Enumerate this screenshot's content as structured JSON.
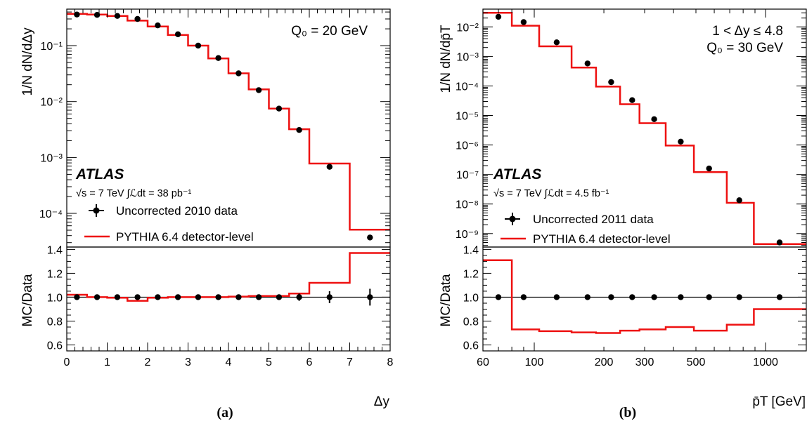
{
  "colors": {
    "mc": "#ee1111",
    "data": "#000000",
    "ref_line": "#000000"
  },
  "chart_data": [
    {
      "type": "line",
      "panel_label": "(a)",
      "main": {
        "ylabel": "1/N dN/dΔy",
        "yscale": "log",
        "ylim": [
          2.5e-05,
          0.45
        ],
        "yticks": [
          "10⁻¹",
          "10⁻²",
          "10⁻³",
          "10⁻⁴"
        ],
        "ytick_values": [
          0.1,
          0.01,
          0.001,
          0.0001
        ]
      },
      "ratio": {
        "ylabel": "MC/Data",
        "ylim": [
          0.55,
          1.42
        ],
        "yticks": [
          "1.4",
          "1.2",
          "1.0",
          "0.8",
          "0.6"
        ],
        "ytick_values": [
          1.4,
          1.2,
          1.0,
          0.8,
          0.6
        ],
        "reference": 1.0
      },
      "xlabel": "Δy",
      "xscale": "linear",
      "xlim": [
        0,
        8
      ],
      "xticks": [
        "0",
        "1",
        "2",
        "3",
        "4",
        "5",
        "6",
        "7",
        "8"
      ],
      "xtick_values": [
        0,
        1,
        2,
        3,
        4,
        5,
        6,
        7,
        8
      ],
      "annotations": [
        "Q₀ = 20 GeV"
      ],
      "experiment": "ATLAS",
      "luminosity_label": "√s = 7 TeV  ∫ℒdt = 38 pb⁻¹",
      "legend": {
        "position": "bottom-left",
        "data_label": "Uncorrected 2010 data",
        "mc_label": "PYTHIA 6.4 detector-level"
      },
      "series": [
        {
          "name": "Uncorrected 2010 data",
          "kind": "points",
          "x": [
            0.25,
            0.75,
            1.25,
            1.75,
            2.25,
            2.75,
            3.25,
            3.75,
            4.25,
            4.75,
            5.25,
            5.75,
            6.5,
            7.5
          ],
          "y": [
            0.36,
            0.355,
            0.34,
            0.3,
            0.23,
            0.16,
            0.1,
            0.06,
            0.032,
            0.016,
            0.0075,
            0.0031,
            0.00068,
            3.7e-05
          ],
          "ratio_yerr": [
            0.005,
            0.005,
            0.005,
            0.005,
            0.005,
            0.005,
            0.005,
            0.005,
            0.01,
            0.01,
            0.015,
            0.03,
            0.05,
            0.07
          ]
        },
        {
          "name": "PYTHIA 6.4 detector-level",
          "kind": "step",
          "edges": [
            0,
            0.5,
            1,
            1.5,
            2,
            2.5,
            3,
            3.5,
            4,
            4.5,
            5,
            5.5,
            6,
            7,
            8
          ],
          "y": [
            0.37,
            0.36,
            0.34,
            0.28,
            0.22,
            0.155,
            0.1,
            0.059,
            0.032,
            0.0165,
            0.0075,
            0.0032,
            0.00078,
            5.1e-05
          ],
          "ratio": [
            1.02,
            1.0,
            0.995,
            0.97,
            0.995,
            1.0,
            1.0,
            1.0,
            1.005,
            1.01,
            1.01,
            1.03,
            1.12,
            1.37
          ]
        }
      ]
    },
    {
      "type": "line",
      "panel_label": "(b)",
      "main": {
        "ylabel": "1/N dN/dp̄T",
        "yscale": "log",
        "ylim": [
          3.5e-10,
          0.04
        ],
        "yticks": [
          "10⁻²",
          "10⁻³",
          "10⁻⁴",
          "10⁻⁵",
          "10⁻⁶",
          "10⁻⁷",
          "10⁻⁸",
          "10⁻⁹"
        ],
        "ytick_values": [
          0.01,
          0.001,
          0.0001,
          1e-05,
          1e-06,
          1e-07,
          1e-08,
          1e-09
        ]
      },
      "ratio": {
        "ylabel": "MC/Data",
        "ylim": [
          0.55,
          1.42
        ],
        "yticks": [
          "1.4",
          "1.2",
          "1.0",
          "0.8",
          "0.6"
        ],
        "ytick_values": [
          1.4,
          1.2,
          1.0,
          0.8,
          0.6
        ],
        "reference": 1.0
      },
      "xlabel": "p̄T [GeV]",
      "xscale": "log",
      "xlim": [
        60,
        1500
      ],
      "xticks": [
        "60",
        "100",
        "200",
        "300",
        "500",
        "1000"
      ],
      "xtick_values": [
        60,
        100,
        200,
        300,
        500,
        1000
      ],
      "annotations": [
        "1 < Δy ≤ 4.8",
        "Q₀ = 30 GeV"
      ],
      "experiment": "ATLAS",
      "luminosity_label": "√s = 7 TeV  ∫ℒdt = 4.5 fb⁻¹",
      "legend": {
        "position": "bottom-left",
        "data_label": "Uncorrected 2011 data",
        "mc_label": "PYTHIA 6.4 detector-level"
      },
      "series": [
        {
          "name": "Uncorrected 2011 data",
          "kind": "points",
          "x": [
            70,
            90,
            125,
            170,
            215,
            265,
            330,
            430,
            570,
            770,
            1150
          ],
          "y": [
            0.022,
            0.0145,
            0.003,
            0.00058,
            0.000135,
            3.3e-05,
            7.5e-06,
            1.3e-06,
            1.6e-07,
            1.35e-08,
            5e-10
          ]
        },
        {
          "name": "PYTHIA 6.4 detector-level",
          "kind": "step",
          "edges": [
            60,
            80,
            105,
            145,
            185,
            235,
            285,
            370,
            490,
            680,
            890,
            1500
          ],
          "y": [
            0.03,
            0.011,
            0.0022,
            0.00042,
            9.5e-05,
            2.4e-05,
            5.5e-06,
            9.6e-07,
            1.2e-07,
            1.1e-08,
            4.4e-10
          ],
          "ratio": [
            1.31,
            0.73,
            0.715,
            0.705,
            0.7,
            0.72,
            0.73,
            0.75,
            0.72,
            0.77,
            0.9
          ]
        }
      ]
    }
  ]
}
